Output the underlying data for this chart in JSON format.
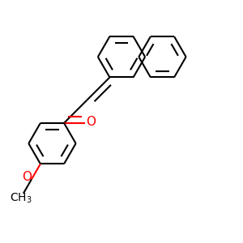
{
  "background_color": "#ffffff",
  "line_color": "#000000",
  "oxygen_color": "#ff0000",
  "line_width": 1.5,
  "dbo_ring": 0.025,
  "dbo_chain": 0.025,
  "font_size_O": 11,
  "font_size_CH3": 10
}
